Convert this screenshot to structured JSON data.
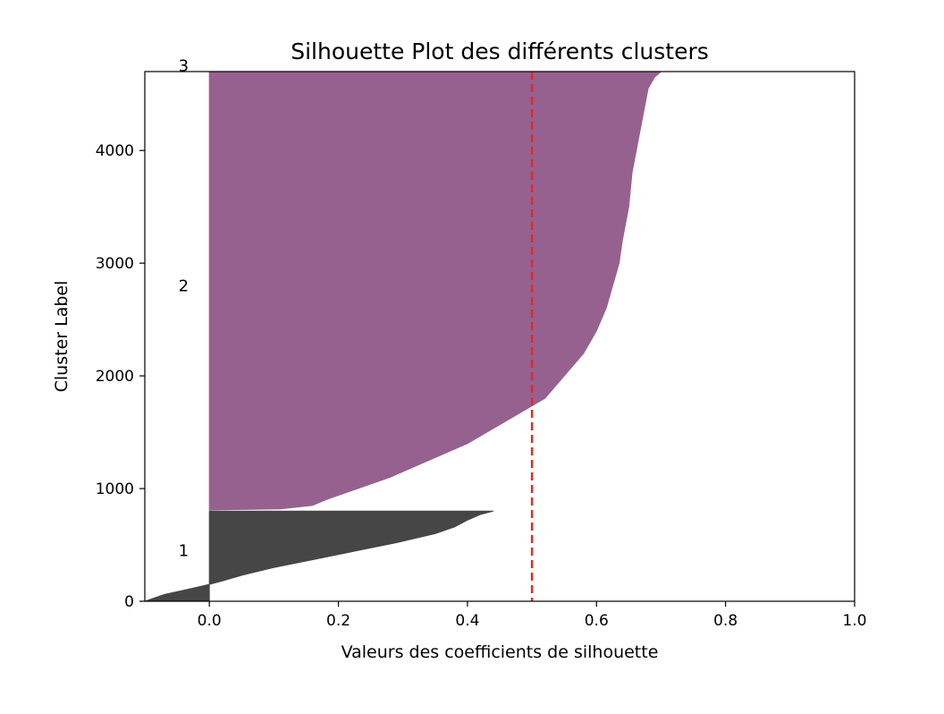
{
  "chart_data": {
    "type": "area",
    "title": "Silhouette Plot des différents clusters",
    "xlabel": "Valeurs des coefficients de silhouette",
    "ylabel": "Cluster Label",
    "xlim": [
      -0.1,
      1.0
    ],
    "ylim": [
      0,
      4700
    ],
    "x_ticks": [
      "0.0",
      "0.2",
      "0.4",
      "0.6",
      "0.8",
      "1.0"
    ],
    "x_tick_values": [
      0.0,
      0.2,
      0.4,
      0.6,
      0.8,
      1.0
    ],
    "y_ticks": [
      "0",
      "1000",
      "2000",
      "3000",
      "4000"
    ],
    "y_tick_values": [
      0,
      1000,
      2000,
      3000,
      4000
    ],
    "grid": false,
    "average_line": {
      "x": 0.5,
      "color": "#e8271c",
      "style": "dashed"
    },
    "clusters": [
      {
        "label": "1",
        "label_y": 450,
        "color": "#464646",
        "y_lower": 0,
        "y_upper": 800,
        "profile": [
          [
            0,
            -0.1
          ],
          [
            60,
            -0.07
          ],
          [
            110,
            -0.03
          ],
          [
            150,
            0.0
          ],
          [
            180,
            0.02
          ],
          [
            230,
            0.05
          ],
          [
            300,
            0.1
          ],
          [
            380,
            0.17
          ],
          [
            450,
            0.23
          ],
          [
            520,
            0.29
          ],
          [
            600,
            0.35
          ],
          [
            660,
            0.38
          ],
          [
            720,
            0.4
          ],
          [
            770,
            0.42
          ],
          [
            800,
            0.44
          ]
        ]
      },
      {
        "label": "2",
        "label_y": 2800,
        "color": "#96618f",
        "y_lower": 810,
        "y_upper": 4700,
        "profile": [
          [
            810,
            0.0
          ],
          [
            820,
            0.11
          ],
          [
            850,
            0.16
          ],
          [
            900,
            0.18
          ],
          [
            1000,
            0.23
          ],
          [
            1100,
            0.28
          ],
          [
            1200,
            0.32
          ],
          [
            1300,
            0.36
          ],
          [
            1400,
            0.4
          ],
          [
            1500,
            0.43
          ],
          [
            1600,
            0.46
          ],
          [
            1700,
            0.49
          ],
          [
            1800,
            0.52
          ],
          [
            2000,
            0.55
          ],
          [
            2200,
            0.58
          ],
          [
            2400,
            0.6
          ],
          [
            2600,
            0.615
          ],
          [
            2800,
            0.625
          ],
          [
            3000,
            0.635
          ],
          [
            3200,
            0.64
          ],
          [
            3500,
            0.65
          ],
          [
            3800,
            0.655
          ],
          [
            4100,
            0.665
          ],
          [
            4400,
            0.675
          ],
          [
            4550,
            0.68
          ],
          [
            4650,
            0.69
          ],
          [
            4700,
            0.7
          ]
        ]
      },
      {
        "label": "3",
        "label_y": 4750,
        "color": "#96618f",
        "y_lower": 4700,
        "y_upper": 4700,
        "profile": []
      }
    ]
  }
}
